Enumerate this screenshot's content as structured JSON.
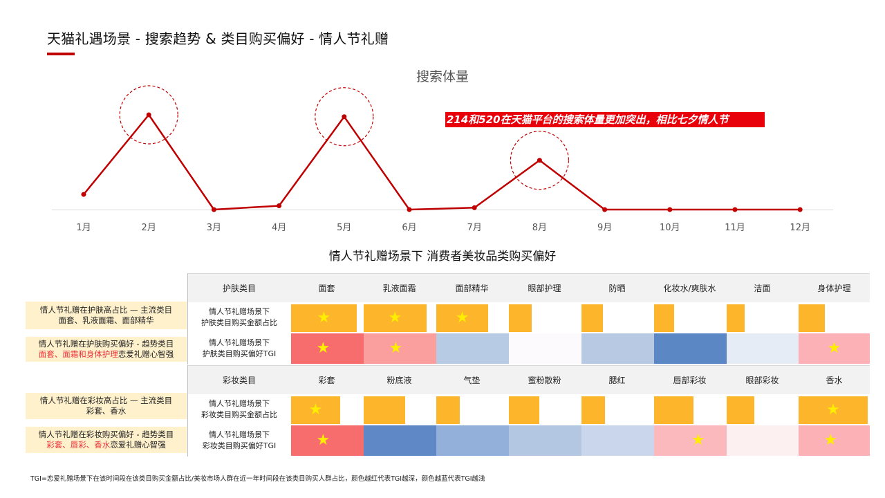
{
  "page": {
    "title": "天猫礼遇场景 - 搜索趋势 & 类目购买偏好 - 情人节礼赠",
    "callout": "214和520在天猫平台的搜索体量更加突出，相比七夕情人节",
    "matrix_title": "情人节礼赠场景下 消费者美妆品类购买偏好",
    "footnote": "TGI=恋爱礼赠场景下在该时间段在该类目购买金额占比/美妆市场人群在近一年时间段在该类目购买人群占比，颜色越红代表TGI越深，颜色越蓝代表TGI越浅"
  },
  "colors": {
    "line": "#c00000",
    "accent": "#e8000b",
    "share_bar": "#fdb52c",
    "label_bg": "#fff1cc",
    "star": "#ffee00"
  },
  "chart_data": {
    "type": "line",
    "title": "搜索体量",
    "categories": [
      "1月",
      "2月",
      "3月",
      "4月",
      "5月",
      "6月",
      "7月",
      "8月",
      "9月",
      "10月",
      "11月",
      "12月"
    ],
    "series": [
      {
        "values": [
          16,
          100,
          0,
          4,
          98,
          0,
          2,
          52,
          0,
          0,
          0,
          0
        ]
      }
    ],
    "highlighted": [
      "2月",
      "5月",
      "8月"
    ],
    "ylim": [
      0,
      110
    ],
    "grid": false,
    "legend": "none"
  },
  "skincare": {
    "header": {
      "label": "护肤类目",
      "categories": [
        "面套",
        "乳液面霜",
        "面部精华",
        "眼部护理",
        "防晒",
        "化妆水/爽肤水",
        "洁面",
        "身体护理"
      ]
    },
    "share_row": {
      "desc_line1": "情人节礼赠场景下",
      "desc_line2": "护肤类目购买金额占比",
      "values": [
        0.92,
        0.88,
        0.73,
        0.32,
        0.3,
        0.28,
        0.25,
        0.37
      ],
      "stars": [
        true,
        true,
        true,
        false,
        false,
        false,
        false,
        false
      ]
    },
    "tgi_row": {
      "desc_line1": "情人节礼赠场景下",
      "desc_line2": "护肤类目购买偏好TGI",
      "colors": [
        "#f76c6c",
        "#fb9e9e",
        "#b8cbe4",
        "#fdfafd",
        "#b7c9e3",
        "#5b87c5",
        "#e6ecf6",
        "#fbb1b6"
      ],
      "stars": [
        true,
        true,
        false,
        false,
        false,
        false,
        false,
        true
      ]
    },
    "label_share": {
      "line1": "情人节礼赠在护肤高占比 — 主流类目",
      "line2": "面套、乳液面霜、面部精华"
    },
    "label_tgi": {
      "line1": "情人节礼赠在护肤购买偏好 - 趋势类目",
      "hl": "面套、面霜和身体护理",
      "rest": "恋爱礼赠心智强"
    }
  },
  "makeup": {
    "header": {
      "label": "彩妆类目",
      "categories": [
        "彩套",
        "粉底液",
        "气垫",
        "蜜粉散粉",
        "腮红",
        "唇部彩妆",
        "眼部彩妆",
        "香水"
      ]
    },
    "share_row": {
      "desc_line1": "情人节礼赠场景下",
      "desc_line2": "彩妆类目购买金额占比",
      "values": [
        0.69,
        0.58,
        0.33,
        0.43,
        0.33,
        0.55,
        0.39,
        0.97
      ],
      "stars": [
        true,
        false,
        false,
        false,
        false,
        false,
        false,
        true
      ]
    },
    "tgi_row": {
      "desc_line1": "情人节礼赠场景下",
      "desc_line2": "彩妆类目购买偏好TGI",
      "colors": [
        "#f76c6c",
        "#5e89c6",
        "#92b0d9",
        "#b3c7e2",
        "#c9d6ec",
        "#fbb8bd",
        "#fdf0f1",
        "#fbb1b6"
      ],
      "stars": [
        true,
        false,
        false,
        false,
        false,
        true,
        false,
        true
      ]
    },
    "label_share": {
      "line1": "情人节礼赠在彩妆高占比 — 主流类目",
      "line2": "彩套、香水"
    },
    "label_tgi": {
      "line1": "情人节礼赠在彩妆购买偏好 - 趋势类目",
      "hl": "彩套、唇彩、香水",
      "rest": "恋爱礼赠心智强"
    }
  }
}
